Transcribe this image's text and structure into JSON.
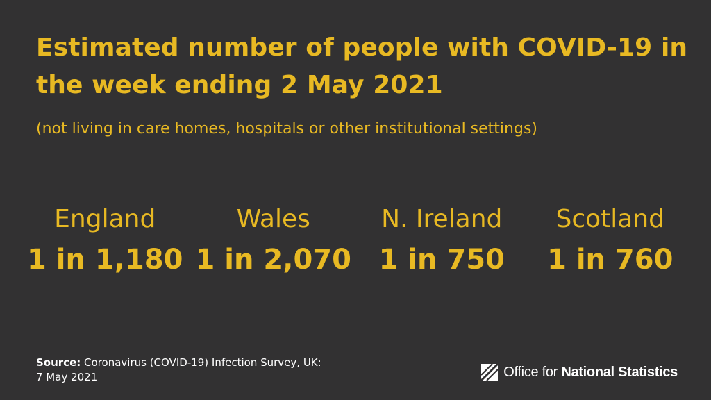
{
  "title": "Estimated number of people with COVID-19 in the week ending 2 May 2021",
  "subtitle": "(not living in care homes, hospitals or other institutional settings)",
  "stats": [
    {
      "nation": "England",
      "value": "1 in 1,180"
    },
    {
      "nation": "Wales",
      "value": "1 in 2,070"
    },
    {
      "nation": "N. Ireland",
      "value": "1 in 750"
    },
    {
      "nation": "Scotland",
      "value": "1 in 760"
    }
  ],
  "source": {
    "label": "Source:",
    "text": "Coronavirus (COVID-19) Infection Survey, UK:",
    "date": "7 May 2021"
  },
  "logo": {
    "icon": "ons-logo-icon",
    "text_regular": "Office for",
    "text_bold": "National Statistics"
  },
  "colors": {
    "background": "#323132",
    "accent": "#e8b923",
    "text": "#ffffff"
  }
}
